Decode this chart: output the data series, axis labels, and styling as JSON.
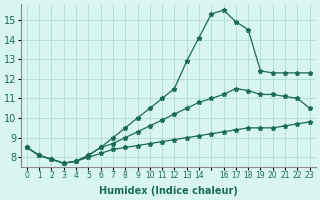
{
  "xlabel": "Humidex (Indice chaleur)",
  "background_color": "#d9f5f0",
  "line_color": "#1a6b5a",
  "xlim": [
    -0.5,
    23.5
  ],
  "ylim": [
    7.5,
    15.8
  ],
  "yticks": [
    8,
    9,
    10,
    11,
    12,
    13,
    14,
    15
  ],
  "xticks": [
    0,
    1,
    2,
    3,
    4,
    5,
    6,
    7,
    8,
    9,
    10,
    11,
    12,
    13,
    14,
    15,
    16,
    17,
    18,
    19,
    20,
    21,
    22,
    23
  ],
  "xtick_labels": [
    "0",
    "1",
    "2",
    "3",
    "4",
    "5",
    "6",
    "7",
    "8",
    "9",
    "10",
    "11",
    "12",
    "13",
    "14",
    "",
    "16",
    "17",
    "18",
    "19",
    "20",
    "21",
    "22",
    "23"
  ],
  "series1": {
    "x": [
      0,
      1,
      2,
      3,
      4,
      5,
      6,
      7,
      8,
      9,
      10,
      11,
      12,
      13,
      14,
      15,
      16,
      17,
      18,
      19,
      20,
      21,
      22,
      23
    ],
    "y": [
      8.5,
      8.1,
      7.9,
      7.7,
      7.8,
      8.1,
      8.5,
      9.0,
      9.5,
      10.0,
      10.5,
      11.0,
      11.5,
      12.9,
      14.1,
      15.3,
      15.5,
      14.9,
      14.5,
      12.4,
      12.3,
      12.3,
      12.3,
      12.3
    ]
  },
  "series2": {
    "x": [
      0,
      1,
      2,
      3,
      4,
      5,
      6,
      7,
      8,
      9,
      10,
      11,
      12,
      13,
      14,
      15,
      16,
      17,
      18,
      19,
      20,
      21,
      22,
      23
    ],
    "y": [
      8.5,
      8.1,
      7.9,
      7.7,
      7.8,
      8.1,
      8.5,
      8.7,
      9.0,
      9.3,
      9.6,
      9.9,
      10.2,
      10.5,
      10.8,
      11.0,
      11.2,
      11.5,
      11.4,
      11.2,
      11.2,
      11.1,
      11.0,
      10.5
    ]
  },
  "series3": {
    "x": [
      0,
      1,
      2,
      3,
      4,
      5,
      6,
      7,
      8,
      9,
      10,
      11,
      12,
      13,
      14,
      15,
      16,
      17,
      18,
      19,
      20,
      21,
      22,
      23
    ],
    "y": [
      8.5,
      8.1,
      7.9,
      7.7,
      7.8,
      8.0,
      8.2,
      8.4,
      8.5,
      8.6,
      8.7,
      8.8,
      8.9,
      9.0,
      9.1,
      9.2,
      9.3,
      9.4,
      9.5,
      9.5,
      9.5,
      9.6,
      9.7,
      9.8
    ]
  }
}
